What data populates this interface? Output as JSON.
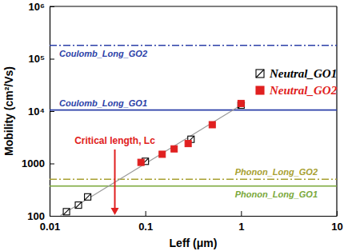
{
  "chart_data": {
    "type": "scatter",
    "x_label": "Leff (μm)",
    "y_label": "Mobility (cm²/Vs)",
    "log": true,
    "xlim": [
      0.01,
      10
    ],
    "ylim": [
      100,
      1000000
    ],
    "xticks": [
      0.01,
      0.1,
      1,
      10
    ],
    "yticks": [
      100,
      1000,
      {
        "value": 10000,
        "label": "10⁴"
      },
      {
        "value": 100000,
        "label": "10⁵"
      },
      {
        "value": 1000000,
        "label": "10⁶"
      }
    ],
    "legend": "upper right",
    "series": [
      {
        "name": "Neutral_GO1",
        "color": "#000000",
        "marker": "hatched-square",
        "x": [
          0.015,
          0.02,
          0.025,
          0.1,
          0.3,
          1
        ],
        "values": [
          120,
          160,
          230,
          1100,
          2900,
          13000
        ]
      },
      {
        "name": "Neutral_GO2",
        "color": "#e02020",
        "marker": "square",
        "x": [
          0.09,
          0.15,
          0.2,
          0.28,
          0.5,
          1
        ],
        "values": [
          1050,
          1500,
          1900,
          2400,
          5500,
          14000
        ]
      },
      {
        "type": "line",
        "color": "#999999",
        "line_style": "solid",
        "x": [
          0.013,
          1.1
        ],
        "values": [
          102,
          14500
        ]
      }
    ],
    "hlines": [
      {
        "label": "Coulomb_Long_GO2",
        "value": 180000,
        "color": "#2b3fa8",
        "line_style": "dashdot"
      },
      {
        "label": "Coulomb_Long_GO1",
        "value": 10500,
        "color": "#2b3fa8",
        "line_style": "solid"
      },
      {
        "label": "Phonon_Long_GO2",
        "value": 500,
        "color": "#a8a030",
        "line_style": "dashdot"
      },
      {
        "label": "Phonon_Long_GO1",
        "value": 370,
        "color": "#7aa83a",
        "line_style": "solid"
      }
    ],
    "annotations": [
      {
        "text": "Critical length, Lc",
        "x": 0.048,
        "color": "#e02020"
      }
    ]
  }
}
